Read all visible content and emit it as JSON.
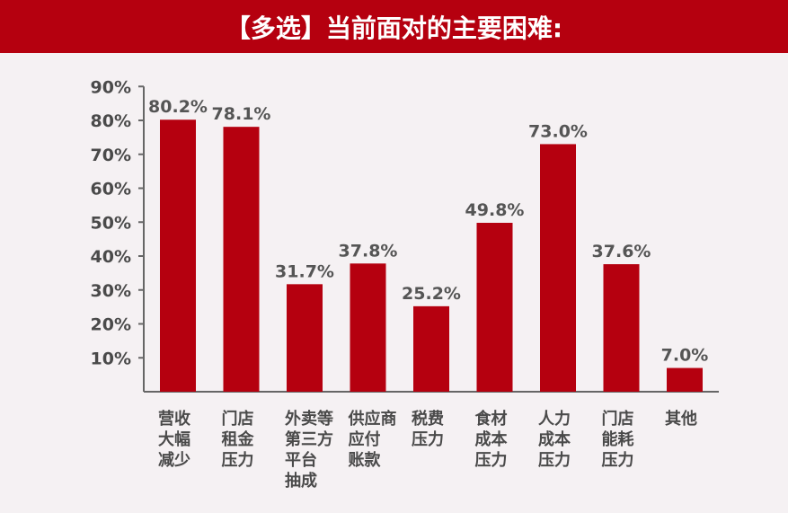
{
  "chart_data": {
    "type": "bar",
    "title": "【多选】当前面对的主要困难:",
    "categories": [
      [
        "营收",
        "大幅",
        "减少"
      ],
      [
        "门店",
        "租金",
        "压力"
      ],
      [
        "外卖等",
        "第三方",
        "平台",
        "抽成"
      ],
      [
        "供应商",
        "应付",
        "账款"
      ],
      [
        "税费",
        "压力"
      ],
      [
        "食材",
        "成本",
        "压力"
      ],
      [
        "人力",
        "成本",
        "压力"
      ],
      [
        "门店",
        "能耗",
        "压力"
      ],
      [
        "其他"
      ]
    ],
    "values": [
      80.2,
      78.1,
      31.7,
      37.8,
      25.2,
      49.8,
      73.0,
      37.6,
      7.0
    ],
    "data_labels": [
      "80.2%",
      "78.1%",
      "31.7%",
      "37.8%",
      "25.2%",
      "49.8%",
      "73.0%",
      "37.6%",
      "7.0%"
    ],
    "yticks": [
      "10%",
      "20%",
      "30%",
      "40%",
      "50%",
      "60%",
      "70%",
      "80%",
      "90%"
    ],
    "ylim": [
      0,
      90
    ],
    "grid": false,
    "bar_color": "#b5000f",
    "title_bar_color": "#b5000f"
  }
}
